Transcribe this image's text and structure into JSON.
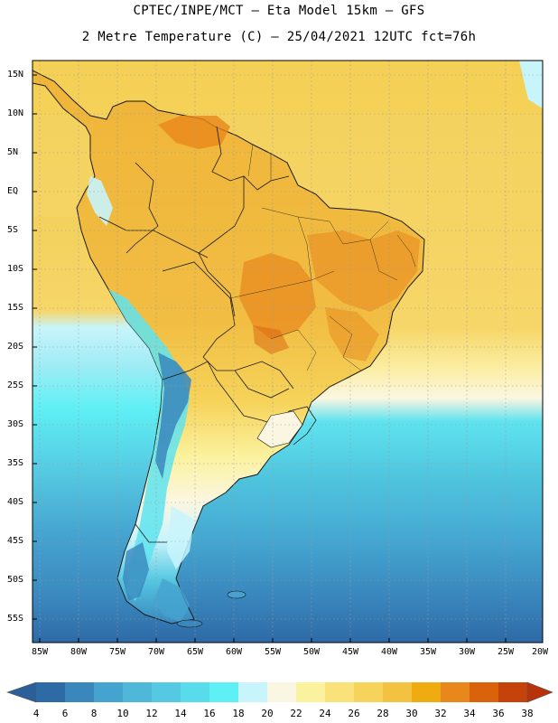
{
  "title": {
    "line1": "CPTEC/INPE/MCT –  Eta Model 15km – GFS",
    "line2": "2 Metre Temperature (C) – 25/04/2021 12UTC fct=76h"
  },
  "axes": {
    "lat_labels": [
      "15N",
      "10N",
      "5N",
      "EQ",
      "5S",
      "10S",
      "15S",
      "20S",
      "25S",
      "30S",
      "35S",
      "40S",
      "45S",
      "50S",
      "55S"
    ],
    "lon_labels": [
      "85W",
      "80W",
      "75W",
      "70W",
      "65W",
      "60W",
      "55W",
      "50W",
      "45W",
      "40W",
      "35W",
      "30W",
      "25W",
      "20W"
    ]
  },
  "colorbar": {
    "labels": [
      "4",
      "6",
      "8",
      "10",
      "12",
      "14",
      "16",
      "18",
      "20",
      "22",
      "24",
      "26",
      "28",
      "30",
      "32",
      "34",
      "36",
      "38"
    ],
    "colors": [
      "#2e6aa6",
      "#3a87bd",
      "#45a3cf",
      "#4fb8d8",
      "#55c9e2",
      "#58dbea",
      "#5ff0f5",
      "#c8f4fb",
      "#fbf6e1",
      "#fbf2a0",
      "#f9e27a",
      "#f6d35a",
      "#f2c240",
      "#f0ab10",
      "#e8871c",
      "#d9620b",
      "#c5420b",
      "#b8330a"
    ]
  },
  "colors": {
    "ocean_warm": "#f6cf55",
    "land_warm": "#f0c04a",
    "cold": "#3f9dcc",
    "border": "#1a1a1a"
  }
}
